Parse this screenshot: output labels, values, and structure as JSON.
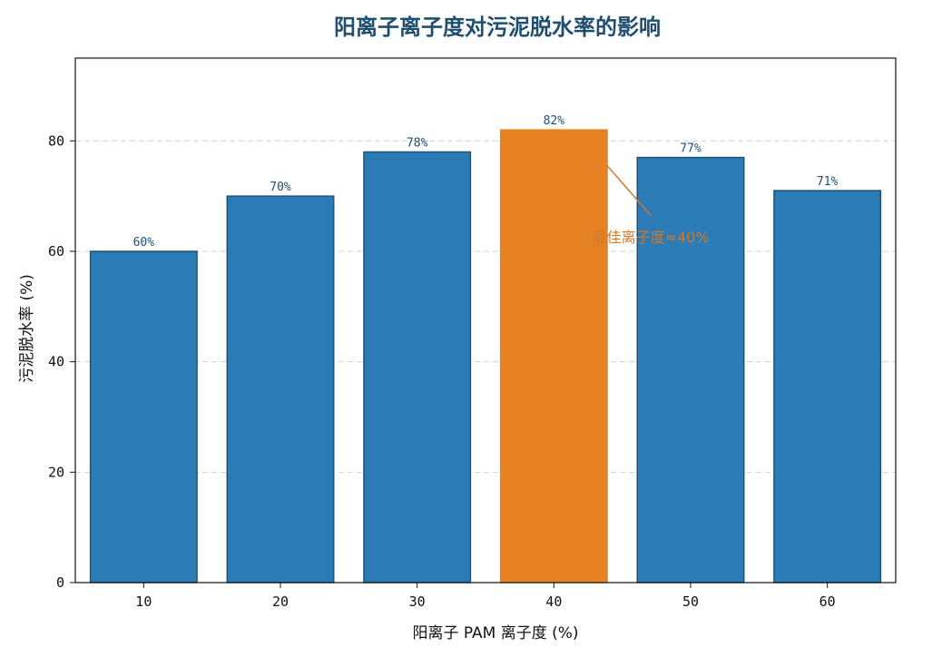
{
  "chart_data": {
    "type": "bar",
    "title": "阳离子离子度对污泥脱水率的影响",
    "xlabel": "阳离子 PAM 离子度 (%)",
    "ylabel": "污泥脱水率 (%)",
    "categories": [
      "10",
      "20",
      "30",
      "40",
      "50",
      "60"
    ],
    "values": [
      60,
      70,
      78,
      82,
      77,
      71
    ],
    "data_labels": [
      "60%",
      "70%",
      "78%",
      "82%",
      "77%",
      "71%"
    ],
    "ylim": [
      0,
      95
    ],
    "yticks": [
      "0",
      "20",
      "40",
      "60",
      "80"
    ],
    "grid": "horizontal dashed",
    "highlight_index": 3,
    "annotation": {
      "text": "最佳离子度≈40%",
      "target_index": 3,
      "text_value_y": 62
    },
    "colors": {
      "bar": "#2b7bb6",
      "bar_edge": "#1f4e6e",
      "highlight": "#e68224",
      "annotation": "#d07a2a",
      "title": "#1f4e6e"
    }
  }
}
